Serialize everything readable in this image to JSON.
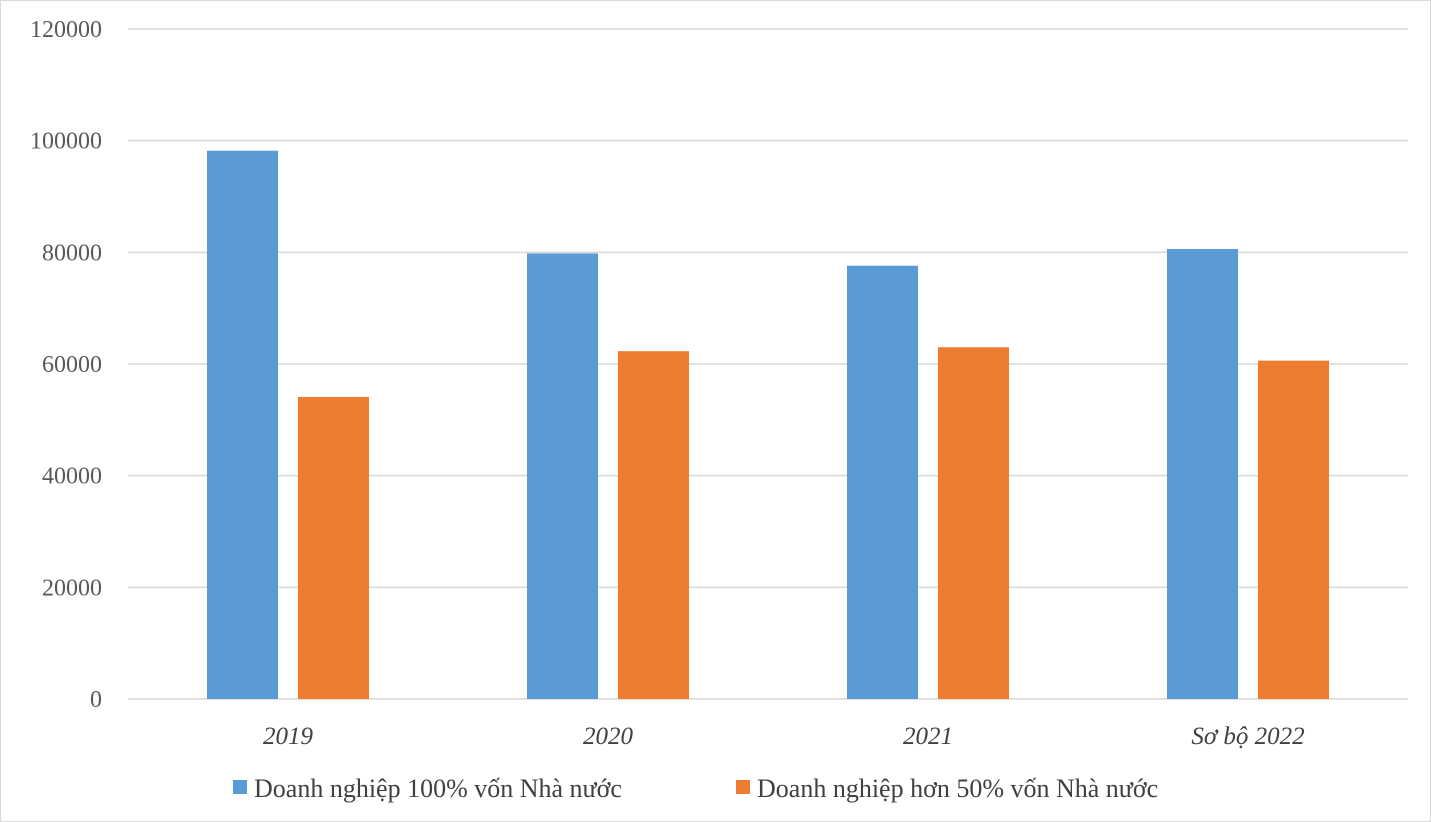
{
  "chart_data": {
    "type": "bar",
    "categories": [
      "2019",
      "2020",
      "2021",
      "Sơ bộ 2022"
    ],
    "series": [
      {
        "name": "Doanh nghiệp 100% vốn Nhà nước",
        "color": "#5b9bd5",
        "values": [
          98200,
          79800,
          77600,
          80600
        ]
      },
      {
        "name": "Doanh nghiệp hơn 50% vốn Nhà nước",
        "color": "#ed7d31",
        "values": [
          54100,
          62300,
          63000,
          60600
        ]
      }
    ],
    "ylim": [
      0,
      120000
    ],
    "yticks": [
      0,
      20000,
      40000,
      60000,
      80000,
      100000,
      120000
    ],
    "grid": true,
    "legend": "bottom"
  }
}
